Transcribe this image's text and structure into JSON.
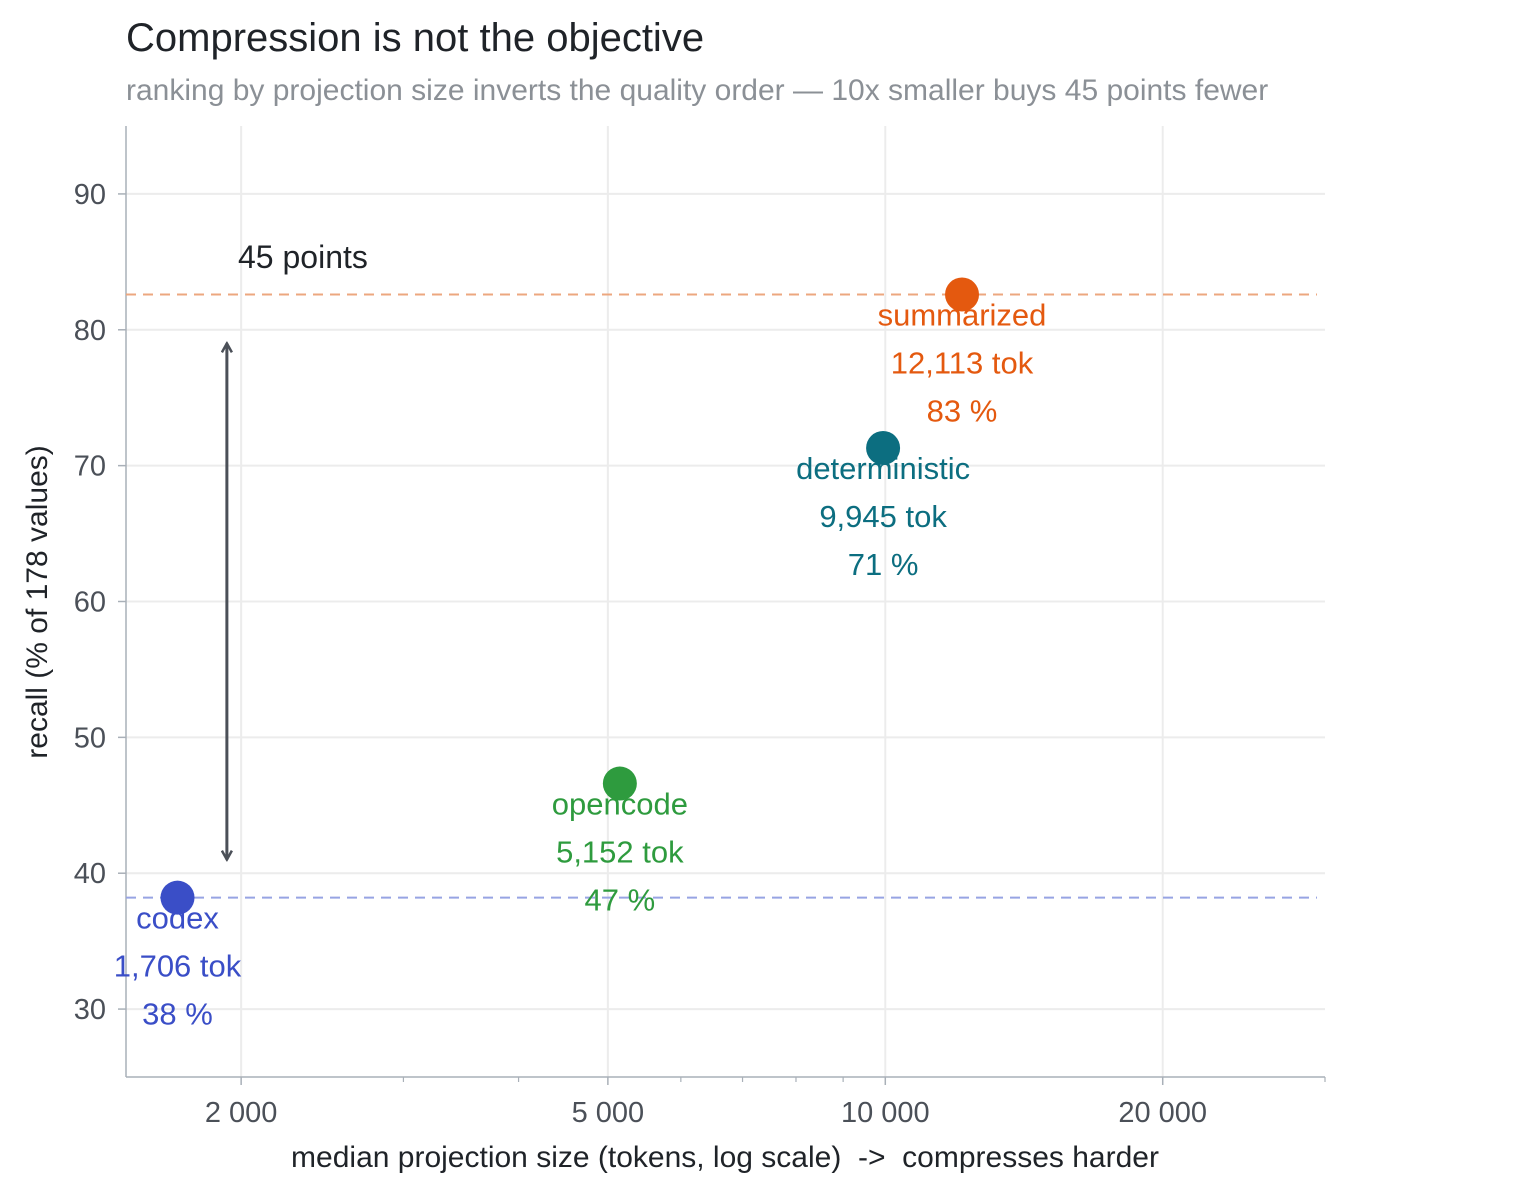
{
  "chart_data": {
    "type": "scatter",
    "title": "Compression is not the objective",
    "subtitle": "ranking by projection size inverts the quality order — 10x smaller buys 45 points fewer",
    "xlabel": "median projection size (tokens, log scale)  ->  compresses harder",
    "ylabel": "recall (% of 178 values)",
    "x_scale": "log",
    "xlim": [
      1500,
      30000
    ],
    "ylim": [
      25,
      95
    ],
    "x_ticks": [
      2000,
      5000,
      10000,
      20000
    ],
    "x_tick_labels": [
      "2 000",
      "5 000",
      "10 000",
      "20 000"
    ],
    "y_ticks": [
      30,
      40,
      50,
      60,
      70,
      80,
      90
    ],
    "grid": true,
    "points": [
      {
        "name": "codex",
        "x": 1706,
        "y": 38.2,
        "size_label": "1,706 tok",
        "recall_label": "38 %",
        "color": "#3a4ec7"
      },
      {
        "name": "opencode",
        "x": 5152,
        "y": 46.6,
        "size_label": "5,152 tok",
        "recall_label": "47 %",
        "color": "#2e9b3e"
      },
      {
        "name": "deterministic",
        "x": 9945,
        "y": 71.3,
        "size_label": "9,945 tok",
        "recall_label": "71 %",
        "color": "#0c6e80"
      },
      {
        "name": "summarized",
        "x": 12113,
        "y": 82.6,
        "size_label": "12,113 tok",
        "recall_label": "83 %",
        "color": "#e4590f"
      }
    ],
    "reference_lines": [
      {
        "y": 82.6,
        "color": "#eca77f"
      },
      {
        "y": 38.2,
        "color": "#97a4e3"
      }
    ],
    "annotation": {
      "text": "45 points",
      "x": 1930,
      "y_from": 41,
      "y_to": 79
    }
  }
}
